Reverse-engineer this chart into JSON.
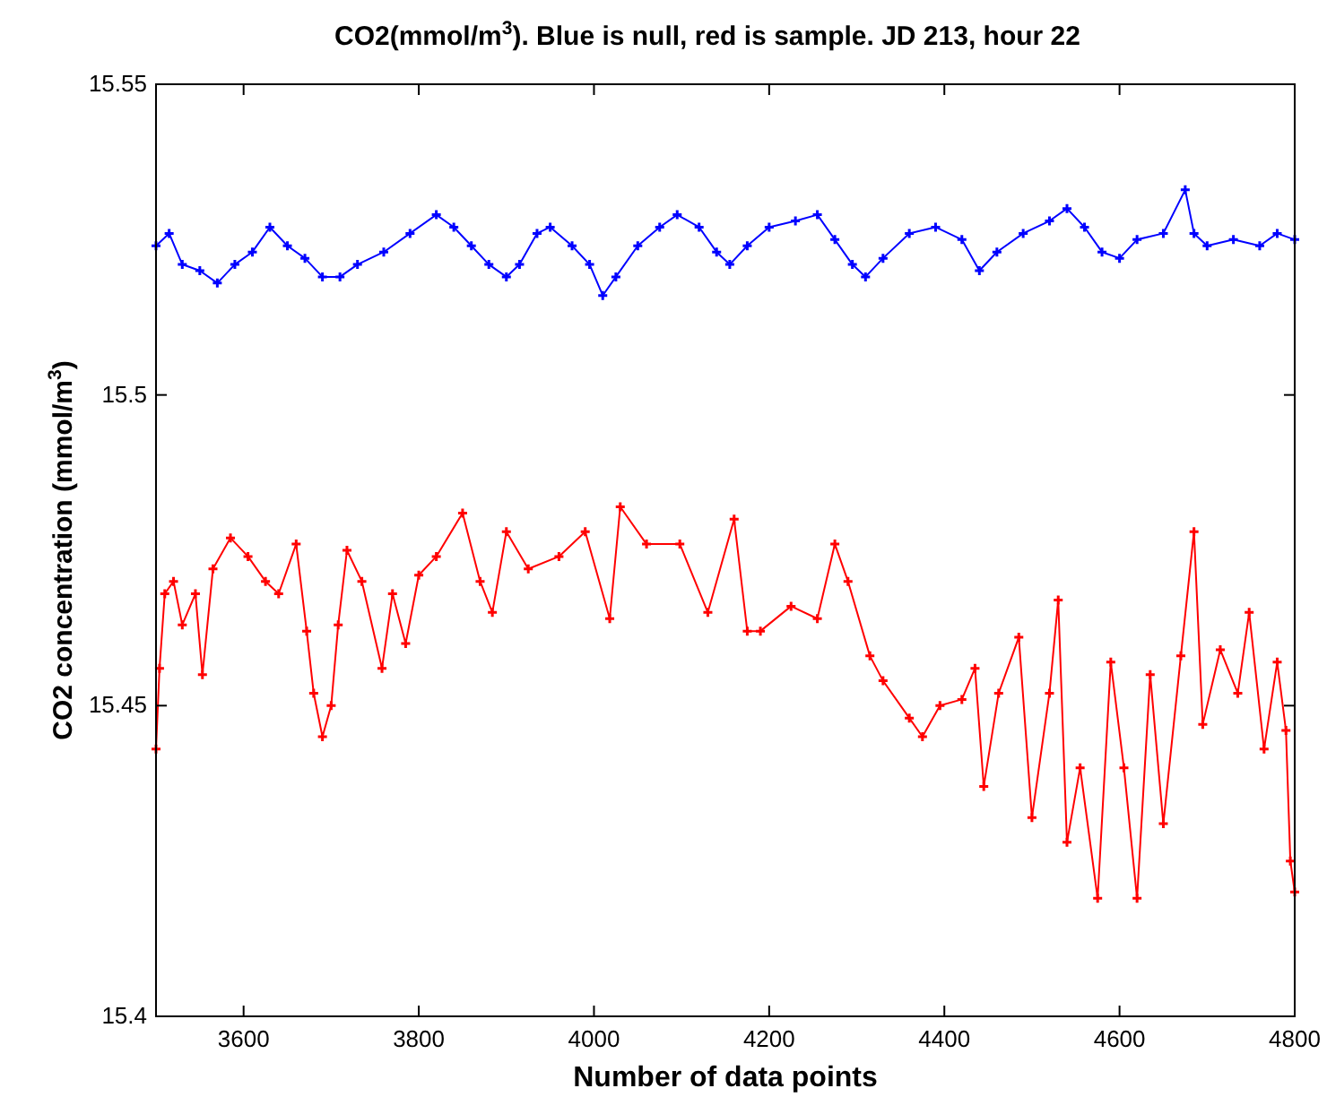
{
  "chart_data": {
    "type": "line",
    "title": "CO2(mmol/m$^{3}$). Blue is null, red is sample. JD 213, hour 22",
    "xlabel": "Number of data points",
    "ylabel": "CO2 concentration (mmol/m$^{3}$)",
    "xlim": [
      3500,
      4800
    ],
    "xticks": [
      3600,
      3800,
      4000,
      4200,
      4400,
      4600,
      4800
    ],
    "ylim": [
      15.4,
      15.55
    ],
    "yticks": [
      15.4,
      15.45,
      15.5,
      15.55
    ],
    "marker": "cross",
    "series": [
      {
        "color": "#0000ff",
        "x": [
          3500,
          3515,
          3530,
          3550,
          3570,
          3590,
          3610,
          3630,
          3650,
          3670,
          3690,
          3710,
          3730,
          3760,
          3790,
          3820,
          3840,
          3860,
          3880,
          3900,
          3915,
          3935,
          3950,
          3975,
          3995,
          4010,
          4025,
          4050,
          4075,
          4095,
          4120,
          4140,
          4155,
          4175,
          4200,
          4230,
          4255,
          4275,
          4295,
          4310,
          4330,
          4360,
          4390,
          4420,
          4440,
          4460,
          4490,
          4520,
          4540,
          4560,
          4580,
          4600,
          4620,
          4650,
          4675,
          4685,
          4700,
          4730,
          4760,
          4780,
          4800
        ],
        "values": [
          15.524,
          15.526,
          15.521,
          15.52,
          15.518,
          15.521,
          15.523,
          15.527,
          15.524,
          15.522,
          15.519,
          15.519,
          15.521,
          15.523,
          15.526,
          15.529,
          15.527,
          15.524,
          15.521,
          15.519,
          15.521,
          15.526,
          15.527,
          15.524,
          15.521,
          15.516,
          15.519,
          15.524,
          15.527,
          15.529,
          15.527,
          15.523,
          15.521,
          15.524,
          15.527,
          15.528,
          15.529,
          15.525,
          15.521,
          15.519,
          15.522,
          15.526,
          15.527,
          15.525,
          15.52,
          15.523,
          15.526,
          15.528,
          15.53,
          15.527,
          15.523,
          15.522,
          15.525,
          15.526,
          15.533,
          15.526,
          15.524,
          15.525,
          15.524,
          15.526,
          15.525
        ]
      },
      {
        "color": "#ff0000",
        "x": [
          3500,
          3504,
          3510,
          3520,
          3530,
          3545,
          3553,
          3565,
          3585,
          3605,
          3625,
          3640,
          3660,
          3672,
          3680,
          3690,
          3700,
          3708,
          3718,
          3735,
          3758,
          3770,
          3785,
          3800,
          3820,
          3850,
          3870,
          3884,
          3900,
          3925,
          3960,
          3990,
          4018,
          4030,
          4060,
          4098,
          4130,
          4160,
          4175,
          4190,
          4225,
          4255,
          4275,
          4290,
          4315,
          4330,
          4360,
          4375,
          4395,
          4420,
          4435,
          4445,
          4462,
          4485,
          4500,
          4520,
          4530,
          4540,
          4555,
          4575,
          4590,
          4605,
          4620,
          4635,
          4650,
          4670,
          4685,
          4695,
          4715,
          4735,
          4748,
          4765,
          4780,
          4790,
          4795,
          4800
        ],
        "values": [
          15.443,
          15.456,
          15.468,
          15.47,
          15.463,
          15.468,
          15.455,
          15.472,
          15.477,
          15.474,
          15.47,
          15.468,
          15.476,
          15.462,
          15.452,
          15.445,
          15.45,
          15.463,
          15.475,
          15.47,
          15.456,
          15.468,
          15.46,
          15.471,
          15.474,
          15.481,
          15.47,
          15.465,
          15.478,
          15.472,
          15.474,
          15.478,
          15.464,
          15.482,
          15.476,
          15.476,
          15.465,
          15.48,
          15.462,
          15.462,
          15.466,
          15.464,
          15.476,
          15.47,
          15.458,
          15.454,
          15.448,
          15.445,
          15.45,
          15.451,
          15.456,
          15.437,
          15.452,
          15.461,
          15.432,
          15.452,
          15.467,
          15.428,
          15.44,
          15.419,
          15.457,
          15.44,
          15.419,
          15.455,
          15.431,
          15.458,
          15.478,
          15.447,
          15.459,
          15.452,
          15.465,
          15.443,
          15.457,
          15.446,
          15.425,
          15.42
        ]
      }
    ]
  }
}
